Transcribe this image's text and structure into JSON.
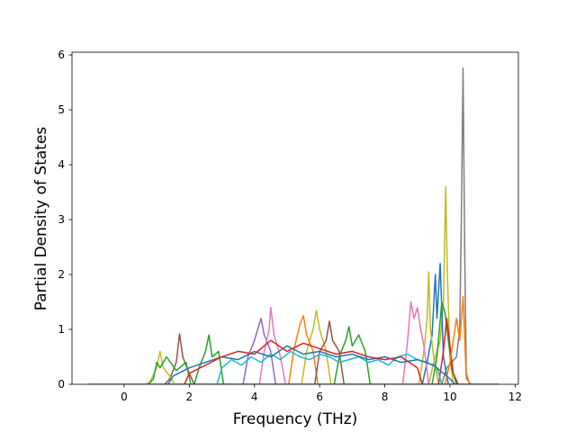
{
  "chart_data": {
    "type": "line",
    "title": "",
    "xlabel": "Frequency (THz)",
    "ylabel": "Partial Density of States",
    "xlim": [
      -1.6,
      12.1
    ],
    "ylim": [
      0,
      6.05
    ],
    "xticks": [
      0,
      2,
      4,
      6,
      8,
      10,
      12
    ],
    "yticks": [
      0,
      1,
      2,
      3,
      4,
      5,
      6
    ],
    "grid": false,
    "legend": "none",
    "palette": [
      "#1f77b4",
      "#ff7f0e",
      "#2ca02c",
      "#d62728",
      "#9467bd",
      "#8c564b",
      "#e377c2",
      "#7f7f7f",
      "#bcbd22",
      "#17becf"
    ],
    "x_range_of_data": [
      -1.1,
      11.5
    ],
    "series": [
      {
        "color": "#7f7f7f",
        "x": [
          9.9,
          10.2,
          10.3,
          10.35,
          10.4,
          10.45,
          10.5,
          10.6
        ],
        "y": [
          0.3,
          0.5,
          1.0,
          3.0,
          5.76,
          2.5,
          0.2,
          0.0
        ]
      },
      {
        "color": "#bcbd22",
        "x": [
          9.5,
          9.7,
          9.8,
          9.87,
          9.92,
          10.0,
          10.1
        ],
        "y": [
          0.4,
          0.8,
          1.5,
          3.6,
          2.0,
          0.5,
          0.0
        ]
      },
      {
        "color": "#1f77b4",
        "x": [
          9.3,
          9.45,
          9.55,
          9.6,
          9.7,
          9.8
        ],
        "y": [
          0.4,
          0.9,
          2.0,
          1.2,
          2.2,
          0.5
        ]
      },
      {
        "color": "#bcbd22",
        "x": [
          9.2,
          9.3,
          9.35,
          9.4,
          9.5
        ],
        "y": [
          0.6,
          1.2,
          2.05,
          1.0,
          0.5
        ]
      },
      {
        "color": "#e377c2",
        "x": [
          8.7,
          8.8,
          8.9,
          9.0,
          9.1,
          9.2
        ],
        "y": [
          0.8,
          1.5,
          1.2,
          1.4,
          1.0,
          0.7
        ]
      },
      {
        "color": "#2ca02c",
        "x": [
          9.6,
          9.75,
          9.85,
          9.95,
          10.05
        ],
        "y": [
          0.5,
          1.5,
          1.3,
          0.8,
          0.3
        ]
      },
      {
        "color": "#d62728",
        "x": [
          9.8,
          9.9,
          10.0,
          10.1
        ],
        "y": [
          0.6,
          1.2,
          0.7,
          0.2
        ]
      },
      {
        "color": "#ff7f0e",
        "x": [
          10.0,
          10.2,
          10.3,
          10.4,
          10.5
        ],
        "y": [
          0.4,
          1.2,
          0.8,
          1.6,
          0.1
        ]
      },
      {
        "color": "#9467bd",
        "x": [
          3.8,
          4.0,
          4.2,
          4.3,
          4.5
        ],
        "y": [
          0.5,
          0.8,
          1.2,
          0.9,
          0.6
        ]
      },
      {
        "color": "#e377c2",
        "x": [
          4.3,
          4.45,
          4.5,
          4.6,
          4.8
        ],
        "y": [
          0.6,
          1.0,
          1.4,
          0.9,
          0.5
        ]
      },
      {
        "color": "#bcbd22",
        "x": [
          5.6,
          5.8,
          5.9,
          6.0,
          6.2
        ],
        "y": [
          0.6,
          1.0,
          1.35,
          1.0,
          0.6
        ]
      },
      {
        "color": "#ff7f0e",
        "x": [
          5.2,
          5.4,
          5.5,
          5.6,
          5.8
        ],
        "y": [
          0.6,
          1.1,
          1.25,
          0.9,
          0.6
        ]
      },
      {
        "color": "#8c564b",
        "x": [
          1.4,
          1.6,
          1.7,
          1.8,
          2.0
        ],
        "y": [
          0.1,
          0.4,
          0.92,
          0.5,
          0.2
        ]
      },
      {
        "color": "#bcbd22",
        "x": [
          0.8,
          1.0,
          1.1,
          1.2,
          1.4
        ],
        "y": [
          0.05,
          0.3,
          0.6,
          0.3,
          0.15
        ]
      },
      {
        "color": "#2ca02c",
        "x": [
          0.9,
          1.0,
          1.1,
          1.3,
          1.6,
          1.9
        ],
        "y": [
          0.1,
          0.4,
          0.3,
          0.5,
          0.25,
          0.4
        ]
      },
      {
        "color": "#2ca02c",
        "x": [
          2.3,
          2.5,
          2.6,
          2.7,
          2.9
        ],
        "y": [
          0.3,
          0.6,
          0.9,
          0.5,
          0.6
        ]
      },
      {
        "color": "#8c564b",
        "x": [
          6.0,
          6.2,
          6.3,
          6.4,
          6.6
        ],
        "y": [
          0.6,
          0.8,
          1.15,
          0.8,
          0.6
        ]
      },
      {
        "color": "#2ca02c",
        "x": [
          6.6,
          6.8,
          6.9,
          7.0,
          7.2,
          7.4
        ],
        "y": [
          0.5,
          0.8,
          1.05,
          0.7,
          0.9,
          0.6
        ]
      },
      {
        "color": "#17becf",
        "x": [
          3.0,
          3.3,
          3.6,
          3.9,
          4.2,
          4.5,
          4.8,
          5.1,
          5.4,
          5.7,
          6.0,
          6.3,
          6.6,
          6.9,
          7.2,
          7.5,
          7.8,
          8.1,
          8.4,
          8.7,
          9.0,
          9.3,
          9.6
        ],
        "y": [
          0.3,
          0.45,
          0.35,
          0.5,
          0.4,
          0.55,
          0.45,
          0.6,
          0.5,
          0.45,
          0.55,
          0.5,
          0.4,
          0.45,
          0.5,
          0.4,
          0.45,
          0.35,
          0.5,
          0.55,
          0.45,
          0.4,
          0.3
        ]
      },
      {
        "color": "#1f77b4",
        "x": [
          1.5,
          2.0,
          2.5,
          3.0,
          3.5,
          4.0,
          4.5,
          5.0,
          5.5,
          6.0,
          6.5,
          7.0,
          7.5,
          8.0,
          8.5,
          9.0,
          9.5,
          10.0
        ],
        "y": [
          0.15,
          0.3,
          0.4,
          0.5,
          0.45,
          0.6,
          0.5,
          0.7,
          0.55,
          0.6,
          0.5,
          0.55,
          0.45,
          0.5,
          0.4,
          0.45,
          0.35,
          0.1
        ]
      },
      {
        "color": "#d62728",
        "x": [
          2.0,
          2.5,
          3.0,
          3.5,
          4.0,
          4.5,
          5.0,
          5.5,
          6.0,
          6.5,
          7.0,
          7.5,
          8.0,
          8.5,
          9.0
        ],
        "y": [
          0.2,
          0.35,
          0.5,
          0.6,
          0.55,
          0.8,
          0.6,
          0.75,
          0.65,
          0.55,
          0.6,
          0.5,
          0.45,
          0.5,
          0.3
        ]
      }
    ]
  }
}
